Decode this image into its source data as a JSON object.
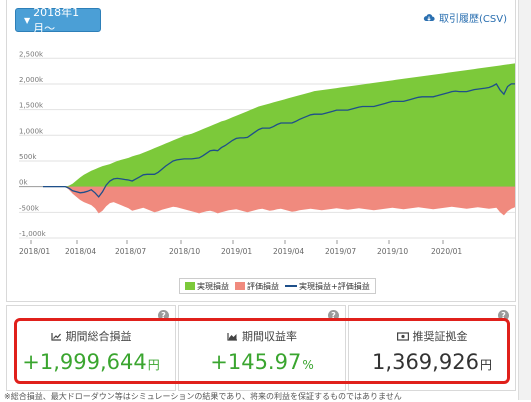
{
  "toolbar": {
    "period_label": "2018年1月〜",
    "csv_label": "取引履歴(CSV)"
  },
  "chart_data": {
    "type": "area",
    "yticks": [
      "2,500k",
      "2,000k",
      "1,500k",
      "1,000k",
      "500k",
      "0k",
      "-500k",
      "-1,000k"
    ],
    "ytick_values": [
      2500,
      2000,
      1500,
      1000,
      500,
      0,
      -500,
      -1000
    ],
    "xticks": [
      "2018/01",
      "2018/04",
      "2018/07",
      "2018/10",
      "2019/01",
      "2019/04",
      "2019/07",
      "2019/10",
      "2020/01"
    ],
    "ylim": [
      -1000,
      2700
    ],
    "x": [
      0,
      4,
      8,
      12,
      16,
      20,
      24,
      28,
      32,
      36,
      40,
      44,
      48,
      52,
      56,
      60,
      64,
      68,
      72,
      76,
      80,
      84,
      88,
      92,
      96,
      100,
      104,
      108,
      112,
      116,
      120,
      124,
      128,
      132,
      136,
      140,
      144,
      148,
      152,
      156,
      160,
      164,
      168,
      172,
      176,
      180,
      184,
      188,
      192,
      196,
      200,
      204,
      208,
      212,
      216,
      220,
      224,
      228,
      232,
      236,
      240,
      244,
      248,
      252,
      256,
      260,
      264,
      268,
      272,
      276,
      280,
      284,
      288,
      292,
      296,
      300,
      304,
      308,
      312,
      316,
      320,
      324,
      328,
      332,
      336,
      340,
      344,
      348,
      352,
      356,
      360,
      364,
      368,
      372,
      376,
      380,
      384,
      388,
      392,
      396,
      400,
      404,
      408,
      412,
      416,
      420,
      424,
      428,
      432,
      436,
      440,
      444,
      448,
      452,
      456,
      460,
      464,
      468,
      472,
      476,
      480,
      484,
      488,
      492,
      496,
      500,
      504,
      508
    ],
    "series": [
      {
        "name": "実現損益",
        "color": "#7cc93a",
        "values": [
          0,
          0,
          0,
          0,
          0,
          0,
          0,
          20,
          60,
          120,
          180,
          230,
          270,
          310,
          340,
          370,
          400,
          420,
          440,
          470,
          500,
          520,
          540,
          560,
          590,
          610,
          630,
          660,
          690,
          720,
          750,
          780,
          810,
          840,
          870,
          900,
          930,
          960,
          990,
          1010,
          1030,
          1060,
          1090,
          1120,
          1150,
          1180,
          1210,
          1240,
          1270,
          1290,
          1320,
          1350,
          1380,
          1410,
          1440,
          1470,
          1500,
          1530,
          1560,
          1580,
          1600,
          1620,
          1640,
          1660,
          1680,
          1700,
          1720,
          1740,
          1760,
          1780,
          1800,
          1820,
          1840,
          1860,
          1870,
          1880,
          1890,
          1900,
          1910,
          1920,
          1930,
          1940,
          1950,
          1960,
          1970,
          1980,
          1990,
          2000,
          2010,
          2020,
          2030,
          2040,
          2050,
          2060,
          2070,
          2080,
          2090,
          2100,
          2110,
          2120,
          2130,
          2140,
          2150,
          2160,
          2170,
          2180,
          2190,
          2200,
          2210,
          2220,
          2230,
          2240,
          2250,
          2260,
          2270,
          2280,
          2290,
          2300,
          2310,
          2320,
          2330,
          2340,
          2350,
          2360,
          2370,
          2380,
          2390,
          2400
        ]
      },
      {
        "name": "評価損益",
        "color": "#f08a7e",
        "values": [
          0,
          0,
          0,
          0,
          0,
          0,
          0,
          -60,
          -140,
          -200,
          -260,
          -300,
          -330,
          -360,
          -420,
          -520,
          -470,
          -380,
          -320,
          -300,
          -330,
          -360,
          -390,
          -420,
          -470,
          -450,
          -430,
          -410,
          -440,
          -470,
          -500,
          -480,
          -450,
          -430,
          -410,
          -390,
          -400,
          -420,
          -440,
          -460,
          -480,
          -500,
          -520,
          -500,
          -480,
          -470,
          -490,
          -520,
          -500,
          -480,
          -460,
          -450,
          -440,
          -460,
          -480,
          -500,
          -480,
          -460,
          -440,
          -430,
          -450,
          -470,
          -460,
          -440,
          -430,
          -450,
          -470,
          -490,
          -480,
          -460,
          -450,
          -440,
          -430,
          -440,
          -450,
          -460,
          -450,
          -440,
          -430,
          -420,
          -430,
          -440,
          -450,
          -440,
          -430,
          -420,
          -430,
          -440,
          -450,
          -460,
          -450,
          -440,
          -430,
          -420,
          -410,
          -420,
          -430,
          -440,
          -430,
          -420,
          -410,
          -400,
          -410,
          -420,
          -430,
          -440,
          -430,
          -420,
          -410,
          -400,
          -390,
          -400,
          -410,
          -420,
          -430,
          -420,
          -410,
          -400,
          -410,
          -420,
          -430,
          -420,
          -410,
          -500,
          -560,
          -480,
          -430,
          -400
        ]
      },
      {
        "name": "実現損益+評価損益",
        "color": "#1e4f8a",
        "values": [
          0,
          0,
          0,
          0,
          0,
          0,
          0,
          -30,
          -80,
          -100,
          -120,
          -110,
          -90,
          -60,
          -120,
          -200,
          -100,
          30,
          110,
          150,
          160,
          150,
          140,
          130,
          110,
          150,
          190,
          230,
          240,
          240,
          240,
          280,
          340,
          400,
          450,
          500,
          520,
          530,
          540,
          540,
          540,
          550,
          560,
          600,
          650,
          700,
          710,
          700,
          760,
          800,
          850,
          900,
          940,
          950,
          950,
          960,
          1010,
          1060,
          1110,
          1140,
          1140,
          1140,
          1170,
          1210,
          1240,
          1240,
          1240,
          1240,
          1270,
          1310,
          1340,
          1370,
          1400,
          1410,
          1410,
          1410,
          1430,
          1450,
          1470,
          1490,
          1490,
          1490,
          1490,
          1510,
          1530,
          1550,
          1560,
          1560,
          1560,
          1560,
          1580,
          1600,
          1620,
          1640,
          1660,
          1660,
          1660,
          1660,
          1680,
          1700,
          1720,
          1740,
          1750,
          1750,
          1750,
          1750,
          1770,
          1790,
          1810,
          1830,
          1850,
          1860,
          1850,
          1850,
          1850,
          1870,
          1890,
          1900,
          1910,
          1920,
          1930,
          1960,
          2000,
          1880,
          1800,
          1950,
          2000,
          2000
        ]
      }
    ]
  },
  "legend": {
    "items": [
      "実現損益",
      "評価損益",
      "実現損益+評価損益"
    ]
  },
  "kpis": [
    {
      "title": "期間総合損益",
      "value": "+1,999,644",
      "unit": "円",
      "icon": "line-chart-icon"
    },
    {
      "title": "期間収益率",
      "value": "+145.97",
      "unit": "%",
      "icon": "area-chart-icon"
    },
    {
      "title": "推奨証拠金",
      "value": "1,369,926",
      "unit": "円",
      "icon": "banknote-icon"
    }
  ],
  "colors": {
    "accent": "#4b9fd6",
    "profit_green": "#3aa52f",
    "highlight_red": "#e0201b"
  },
  "footnote": "※総合損益、最大ドローダウン等はシミュレーションの結果であり、将来の利益を保証するものではありません"
}
